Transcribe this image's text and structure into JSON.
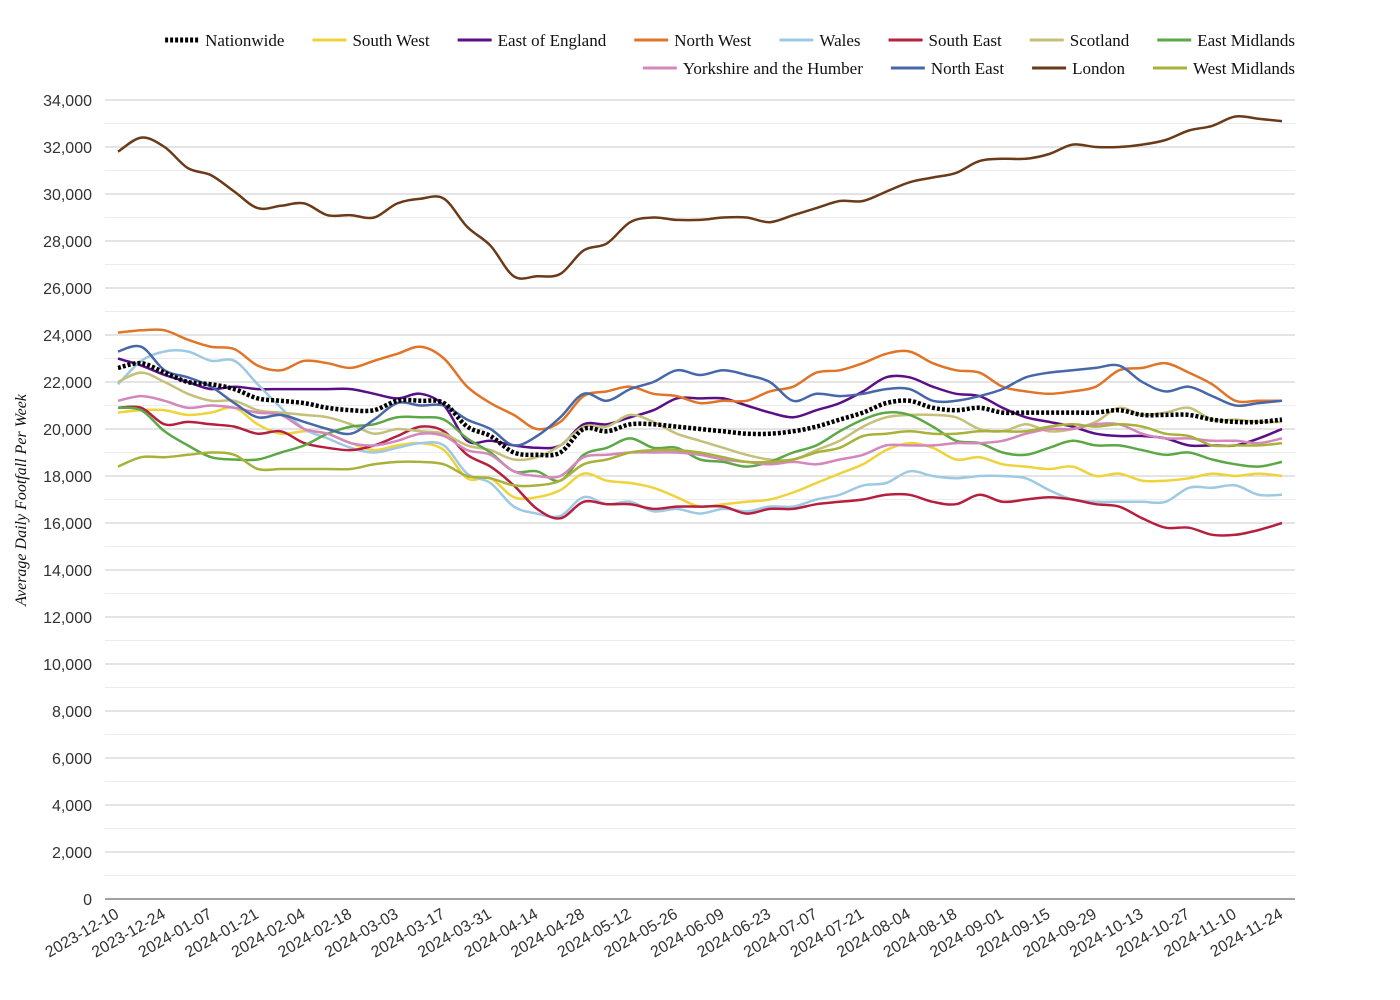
{
  "chart_data": {
    "type": "line",
    "title": "",
    "xlabel": "",
    "ylabel": "Average Daily Footfall Per Week",
    "ylim": [
      0,
      34000
    ],
    "yticks": [
      0,
      2000,
      4000,
      6000,
      8000,
      10000,
      12000,
      14000,
      16000,
      18000,
      20000,
      22000,
      24000,
      26000,
      28000,
      30000,
      32000,
      34000
    ],
    "ytick_labels": [
      "0",
      "2,000",
      "4,000",
      "6,000",
      "8,000",
      "10,000",
      "12,000",
      "14,000",
      "16,000",
      "18,000",
      "20,000",
      "22,000",
      "24,000",
      "26,000",
      "28,000",
      "30,000",
      "32,000",
      "34,000"
    ],
    "grid": true,
    "legend_position": "top",
    "x": [
      "2023-12-10",
      "2023-12-17",
      "2023-12-24",
      "2023-12-31",
      "2024-01-07",
      "2024-01-14",
      "2024-01-21",
      "2024-01-28",
      "2024-02-04",
      "2024-02-11",
      "2024-02-18",
      "2024-02-25",
      "2024-03-03",
      "2024-03-10",
      "2024-03-17",
      "2024-03-24",
      "2024-03-31",
      "2024-04-07",
      "2024-04-14",
      "2024-04-21",
      "2024-04-28",
      "2024-05-05",
      "2024-05-12",
      "2024-05-19",
      "2024-05-26",
      "2024-06-02",
      "2024-06-09",
      "2024-06-16",
      "2024-06-23",
      "2024-06-30",
      "2024-07-07",
      "2024-07-14",
      "2024-07-21",
      "2024-07-28",
      "2024-08-04",
      "2024-08-11",
      "2024-08-18",
      "2024-08-25",
      "2024-09-01",
      "2024-09-08",
      "2024-09-15",
      "2024-09-22",
      "2024-09-29",
      "2024-10-06",
      "2024-10-13",
      "2024-10-20",
      "2024-10-27",
      "2024-11-03",
      "2024-11-10",
      "2024-11-17",
      "2024-11-24"
    ],
    "x_tick_labels": [
      "2023-12-10",
      "2023-12-24",
      "2024-01-07",
      "2024-01-21",
      "2024-02-04",
      "2024-02-18",
      "2024-03-03",
      "2024-03-17",
      "2024-03-31",
      "2024-04-14",
      "2024-04-28",
      "2024-05-12",
      "2024-05-26",
      "2024-06-09",
      "2024-06-23",
      "2024-07-07",
      "2024-07-21",
      "2024-08-04",
      "2024-08-18",
      "2024-09-01",
      "2024-09-15",
      "2024-09-29",
      "2024-10-13",
      "2024-10-27",
      "2024-11-10",
      "2024-11-24"
    ],
    "series": [
      {
        "name": "Nationwide",
        "color": "#000000",
        "dashed": true,
        "values": [
          22600,
          22800,
          22400,
          22000,
          21900,
          21700,
          21300,
          21200,
          21100,
          20900,
          20800,
          20800,
          21200,
          21200,
          21100,
          20100,
          19700,
          19000,
          18900,
          19000,
          20000,
          19900,
          20200,
          20200,
          20100,
          20000,
          19900,
          19800,
          19800,
          19900,
          20100,
          20400,
          20700,
          21100,
          21200,
          20900,
          20800,
          20900,
          20700,
          20700,
          20700,
          20700,
          20700,
          20800,
          20600,
          20600,
          20600,
          20400,
          20300,
          20300,
          20400
        ]
      },
      {
        "name": "South West",
        "color": "#eed33a",
        "dashed": false,
        "values": [
          20700,
          20800,
          20800,
          20600,
          20700,
          20900,
          20200,
          19800,
          19900,
          19800,
          19400,
          19100,
          19300,
          19400,
          19100,
          17900,
          17900,
          17100,
          17100,
          17400,
          18100,
          17800,
          17700,
          17500,
          17100,
          16700,
          16800,
          16900,
          17000,
          17300,
          17700,
          18100,
          18500,
          19100,
          19400,
          19200,
          18700,
          18800,
          18500,
          18400,
          18300,
          18400,
          18000,
          18100,
          17800,
          17800,
          17900,
          18100,
          18000,
          18100,
          18000
        ]
      },
      {
        "name": "East of England",
        "color": "#5b0f86",
        "dashed": false,
        "values": [
          23000,
          22700,
          22300,
          22000,
          21700,
          21800,
          21700,
          21700,
          21700,
          21700,
          21700,
          21500,
          21300,
          21500,
          21000,
          19500,
          19500,
          19300,
          19200,
          19300,
          20200,
          20200,
          20500,
          20800,
          21300,
          21300,
          21300,
          21000,
          20700,
          20500,
          20800,
          21100,
          21600,
          22200,
          22200,
          21800,
          21500,
          21400,
          20900,
          20500,
          20300,
          20100,
          19800,
          19700,
          19700,
          19600,
          19300,
          19300,
          19300,
          19600,
          20000
        ]
      },
      {
        "name": "North West",
        "color": "#e07428",
        "dashed": false,
        "values": [
          24100,
          24200,
          24200,
          23800,
          23500,
          23400,
          22700,
          22500,
          22900,
          22800,
          22600,
          22900,
          23200,
          23500,
          23000,
          21800,
          21100,
          20600,
          20000,
          20300,
          21400,
          21600,
          21800,
          21500,
          21400,
          21100,
          21200,
          21200,
          21600,
          21800,
          22400,
          22500,
          22800,
          23200,
          23300,
          22800,
          22500,
          22400,
          21800,
          21600,
          21500,
          21600,
          21800,
          22500,
          22600,
          22800,
          22400,
          21900,
          21200,
          21200,
          21200
        ]
      },
      {
        "name": "Wales",
        "color": "#9ec9e2",
        "dashed": false,
        "values": [
          21900,
          22900,
          23300,
          23300,
          22900,
          22900,
          21900,
          20900,
          20000,
          19600,
          19200,
          19000,
          19200,
          19400,
          19300,
          18100,
          17700,
          16700,
          16400,
          16300,
          17100,
          16800,
          16900,
          16500,
          16600,
          16400,
          16600,
          16500,
          16700,
          16700,
          17000,
          17200,
          17600,
          17700,
          18200,
          18000,
          17900,
          18000,
          18000,
          17900,
          17400,
          17000,
          16900,
          16900,
          16900,
          16900,
          17500,
          17500,
          17600,
          17200,
          17200
        ]
      },
      {
        "name": "South East",
        "color": "#b5203f",
        "dashed": false,
        "values": [
          20900,
          20900,
          20200,
          20300,
          20200,
          20100,
          19800,
          19900,
          19400,
          19200,
          19100,
          19300,
          19700,
          20100,
          19900,
          18900,
          18400,
          17600,
          16600,
          16200,
          16900,
          16800,
          16800,
          16600,
          16700,
          16700,
          16700,
          16400,
          16600,
          16600,
          16800,
          16900,
          17000,
          17200,
          17200,
          16900,
          16800,
          17200,
          16900,
          17000,
          17100,
          17000,
          16800,
          16700,
          16200,
          15800,
          15800,
          15500,
          15500,
          15700,
          16000
        ]
      },
      {
        "name": "Scotland",
        "color": "#c4c07a",
        "dashed": false,
        "values": [
          22000,
          22400,
          22000,
          21500,
          21200,
          21200,
          20800,
          20700,
          20600,
          20500,
          20200,
          19800,
          20000,
          19900,
          19800,
          19300,
          19100,
          18700,
          18800,
          19300,
          20100,
          20100,
          20600,
          20300,
          19800,
          19500,
          19200,
          18900,
          18700,
          18700,
          19100,
          19500,
          20100,
          20500,
          20600,
          20600,
          20500,
          20000,
          19900,
          20200,
          19900,
          20000,
          20300,
          20900,
          20600,
          20700,
          20900,
          20400,
          20400,
          20300,
          20300
        ]
      },
      {
        "name": "East Midlands",
        "color": "#5ca746",
        "dashed": false,
        "values": [
          20900,
          20800,
          19900,
          19300,
          18800,
          18700,
          18700,
          19000,
          19300,
          19800,
          20100,
          20200,
          20500,
          20500,
          20400,
          19600,
          19000,
          18200,
          18200,
          17800,
          18900,
          19200,
          19600,
          19200,
          19200,
          18700,
          18600,
          18400,
          18600,
          19000,
          19300,
          19900,
          20400,
          20700,
          20600,
          20100,
          19500,
          19400,
          19000,
          18900,
          19200,
          19500,
          19300,
          19300,
          19100,
          18900,
          19000,
          18700,
          18500,
          18400,
          18600
        ]
      },
      {
        "name": "Yorkshire and the Humber",
        "color": "#d487bc",
        "dashed": false,
        "values": [
          21200,
          21400,
          21200,
          20900,
          21000,
          20900,
          20700,
          20600,
          20000,
          19800,
          19400,
          19300,
          19500,
          19800,
          19700,
          19100,
          18900,
          18200,
          18000,
          18000,
          18800,
          18900,
          19000,
          19000,
          19000,
          18900,
          18700,
          18600,
          18500,
          18600,
          18500,
          18700,
          18900,
          19300,
          19300,
          19300,
          19400,
          19400,
          19500,
          19800,
          20000,
          20000,
          20200,
          20200,
          19800,
          19600,
          19600,
          19500,
          19500,
          19400,
          19600
        ]
      },
      {
        "name": "North East",
        "color": "#4667a8",
        "dashed": false,
        "values": [
          23300,
          23500,
          22500,
          22200,
          21800,
          21100,
          20500,
          20600,
          20300,
          20000,
          19800,
          20400,
          21100,
          21000,
          21000,
          20400,
          20000,
          19300,
          19700,
          20500,
          21500,
          21200,
          21700,
          22000,
          22500,
          22300,
          22500,
          22300,
          22000,
          21200,
          21500,
          21400,
          21500,
          21700,
          21700,
          21200,
          21200,
          21400,
          21700,
          22200,
          22400,
          22500,
          22600,
          22700,
          22000,
          21600,
          21800,
          21400,
          21000,
          21100,
          21200
        ]
      },
      {
        "name": "London",
        "color": "#6b3a18",
        "dashed": false,
        "values": [
          31800,
          32400,
          32000,
          31100,
          30800,
          30100,
          29400,
          29500,
          29600,
          29100,
          29100,
          29000,
          29600,
          29800,
          29800,
          28600,
          27800,
          26500,
          26500,
          26600,
          27600,
          27900,
          28800,
          29000,
          28900,
          28900,
          29000,
          29000,
          28800,
          29100,
          29400,
          29700,
          29700,
          30100,
          30500,
          30700,
          30900,
          31400,
          31500,
          31500,
          31700,
          32100,
          32000,
          32000,
          32100,
          32300,
          32700,
          32900,
          33300,
          33200,
          33100
        ]
      },
      {
        "name": "West Midlands",
        "color": "#a8b23a",
        "dashed": false,
        "values": [
          18400,
          18800,
          18800,
          18900,
          19000,
          18900,
          18300,
          18300,
          18300,
          18300,
          18300,
          18500,
          18600,
          18600,
          18500,
          18000,
          17900,
          17600,
          17600,
          17800,
          18500,
          18700,
          19000,
          19100,
          19100,
          19000,
          18800,
          18600,
          18600,
          18700,
          19000,
          19200,
          19700,
          19800,
          19900,
          19800,
          19800,
          19900,
          19900,
          19900,
          20100,
          20200,
          20100,
          20200,
          20100,
          19800,
          19700,
          19300,
          19300,
          19300,
          19400
        ]
      }
    ],
    "legend_rows": [
      [
        "Nationwide",
        "South West",
        "East of England",
        "North West",
        "Wales",
        "South East",
        "Scotland",
        "East Midlands"
      ],
      [
        "Yorkshire and the Humber",
        "North East",
        "London",
        "West Midlands"
      ]
    ]
  }
}
